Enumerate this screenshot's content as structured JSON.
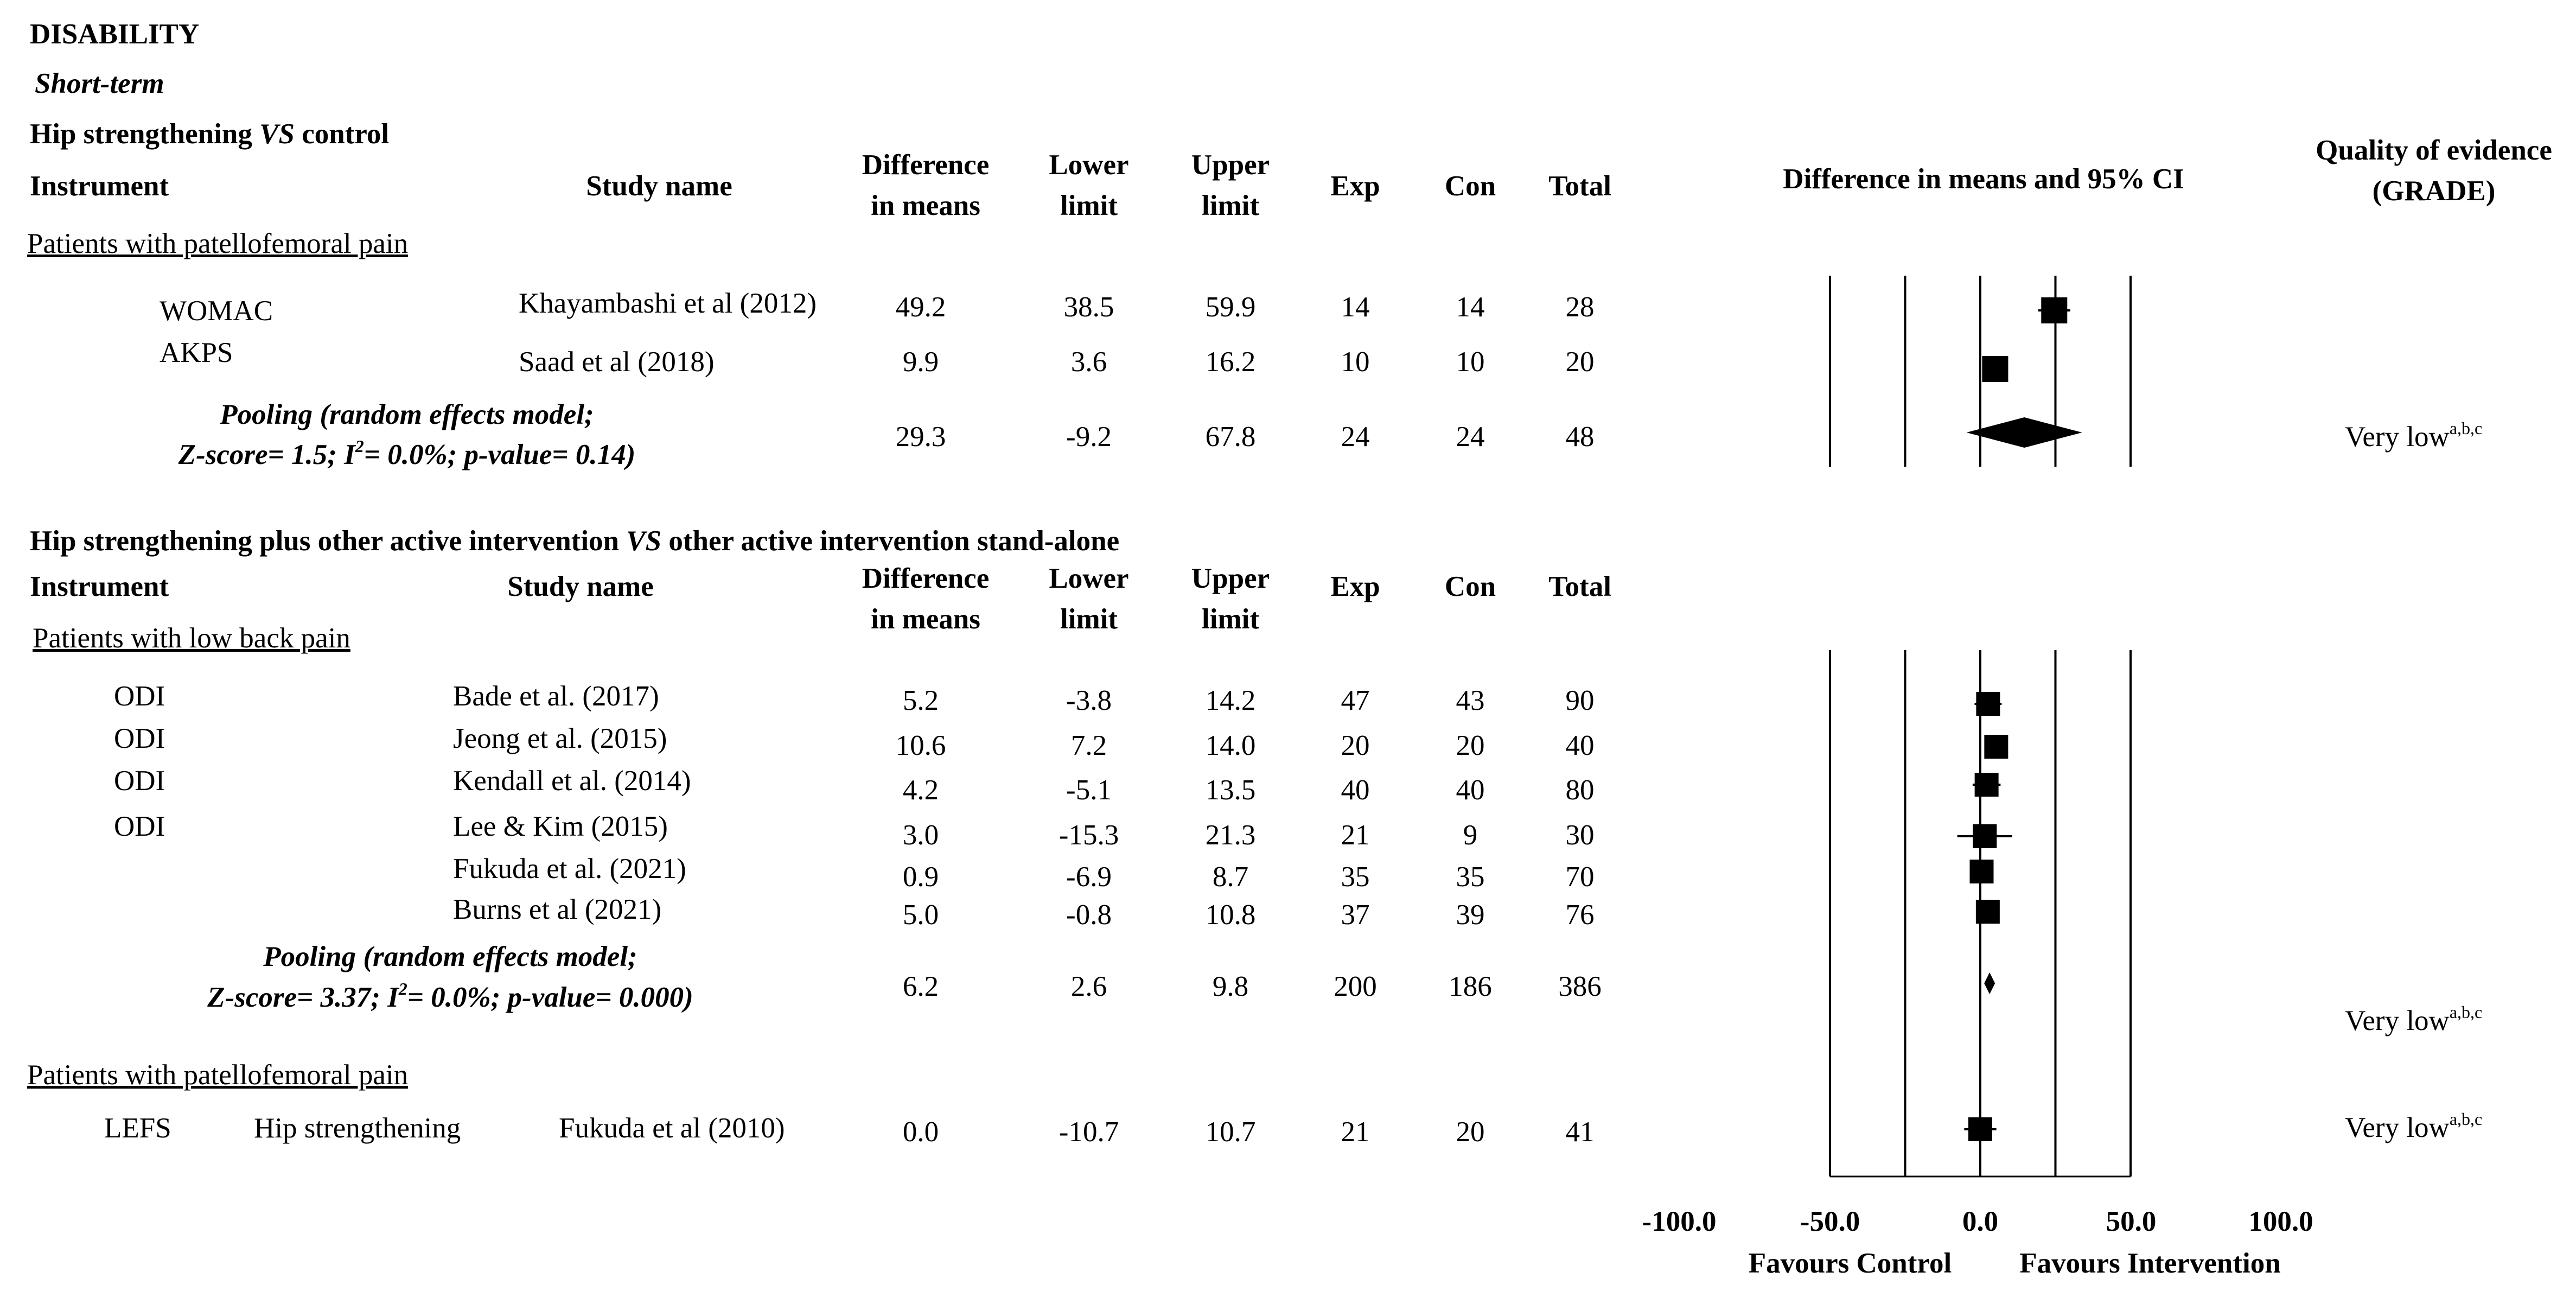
{
  "header": {
    "title": "DISABILITY",
    "subtitle": "Short-term",
    "plot_title": "Difference in means and 95% CI",
    "quality_line1": "Quality of evidence",
    "quality_line2": "(GRADE)"
  },
  "columns": {
    "instrument": "Instrument",
    "study": "Study name",
    "diff1": "Difference",
    "diff2": "in means",
    "lower1": "Lower",
    "lower2": "limit",
    "upper1": "Upper",
    "upper2": "limit",
    "exp": "Exp",
    "con": "Con",
    "total": "Total"
  },
  "section1": {
    "comparison_pre": "Hip strengthening ",
    "vs": "VS",
    "comparison_post": " control",
    "group": "Patients with patellofemoral pain",
    "pooling_line1": "Pooling (random effects model;",
    "pooling_line2": "Z-score= 1.5; I2= 0.0%; p-value= 0.14)",
    "quality": "Very low",
    "quality_sup": "a,b,c"
  },
  "section2": {
    "comparison_pre": "Hip strengthening plus other active intervention ",
    "vs": "VS",
    "comparison_post": " other active intervention stand-alone",
    "group1": "Patients with low back pain",
    "pooling_line1": "Pooling (random effects model;",
    "pooling_line2": "Z-score= 3.37; I2= 0.0%; p-value= 0.000)",
    "quality1": "Very low",
    "quality1_sup": "a,b,c",
    "group2": "Patients with patellofemoral pain",
    "quality2": "Very low",
    "quality2_sup": "a,b,c"
  },
  "axis": {
    "ticks": [
      "-100.0",
      "-50.0",
      "0.0",
      "50.0",
      "100.0"
    ],
    "favours_control": "Favours Control",
    "favours_intervention": "Favours Intervention"
  },
  "chart_data": {
    "type": "forest",
    "xlim": [
      -100,
      100
    ],
    "ticks": [
      -100,
      -50,
      0,
      50,
      100
    ],
    "xlabel_left": "Favours Control",
    "xlabel_right": "Favours Intervention",
    "panels": [
      {
        "comparison": "Hip strengthening VS control",
        "studies": [
          {
            "instrument": "WOMAC",
            "study": "Khayambashi et al (2012)",
            "diff": "49.2",
            "lower": "38.5",
            "upper": "59.9",
            "exp": "14",
            "con": "14",
            "total": "28"
          },
          {
            "instrument": "AKPS",
            "study": "Saad et al (2018)",
            "diff": "9.9",
            "lower": "3.6",
            "upper": "16.2",
            "exp": "10",
            "con": "10",
            "total": "20"
          }
        ],
        "pooled": {
          "diff": "29.3",
          "lower": "-9.2",
          "upper": "67.8",
          "exp": "24",
          "con": "24",
          "total": "48"
        }
      },
      {
        "comparison": "Hip strengthening plus other active intervention VS other active intervention stand-alone",
        "studies": [
          {
            "instrument": "ODI",
            "study": "Bade et al. (2017)",
            "diff": "5.2",
            "lower": "-3.8",
            "upper": "14.2",
            "exp": "47",
            "con": "43",
            "total": "90"
          },
          {
            "instrument": "ODI",
            "study": "Jeong et al. (2015)",
            "diff": "10.6",
            "lower": "7.2",
            "upper": "14.0",
            "exp": "20",
            "con": "20",
            "total": "40"
          },
          {
            "instrument": "ODI",
            "study": "Kendall et al. (2014)",
            "diff": "4.2",
            "lower": "-5.1",
            "upper": "13.5",
            "exp": "40",
            "con": "40",
            "total": "80"
          },
          {
            "instrument": "ODI",
            "study": "Lee & Kim (2015)",
            "diff": "3.0",
            "lower": "-15.3",
            "upper": "21.3",
            "exp": "21",
            "con": "9",
            "total": "30"
          },
          {
            "instrument": "",
            "study": "Fukuda et al. (2021)",
            "diff": "0.9",
            "lower": "-6.9",
            "upper": "8.7",
            "exp": "35",
            "con": "35",
            "total": "70"
          },
          {
            "instrument": "",
            "study": "Burns et al (2021)",
            "diff": "5.0",
            "lower": "-0.8",
            "upper": "10.8",
            "exp": "37",
            "con": "39",
            "total": "76"
          }
        ],
        "pooled": {
          "diff": "6.2",
          "lower": "2.6",
          "upper": "9.8",
          "exp": "200",
          "con": "186",
          "total": "386"
        },
        "extra": [
          {
            "instrument": "LEFS",
            "intervention": "Hip strengthening",
            "study": "Fukuda et al (2010)",
            "diff": "0.0",
            "lower": "-10.7",
            "upper": "10.7",
            "exp": "21",
            "con": "20",
            "total": "41"
          }
        ]
      }
    ]
  }
}
